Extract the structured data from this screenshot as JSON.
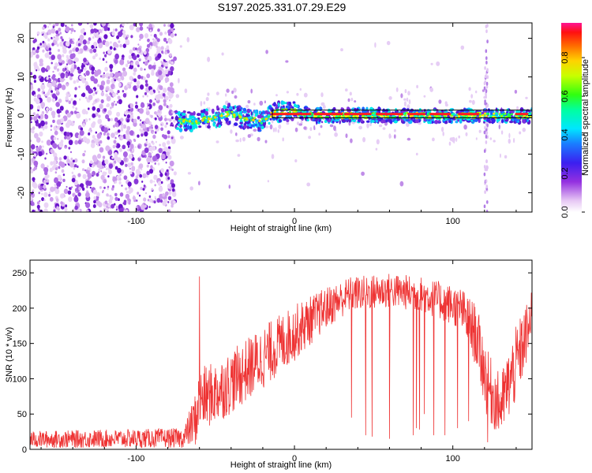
{
  "title": "S197.2025.331.07.29.E29",
  "chart_data": [
    {
      "type": "heatmap",
      "xlabel": "Height of straight line (km)",
      "ylabel": "Frequency (Hz)",
      "xlim": [
        -167,
        150
      ],
      "ylim": [
        -25,
        24
      ],
      "xticks": [
        -100,
        0,
        100
      ],
      "yticks": [
        -20,
        -10,
        0,
        10,
        20
      ],
      "colorbar": {
        "label": "Normalized spectral amplitude",
        "range": [
          0,
          0.98
        ],
        "ticks": [
          "0.0",
          "0.2",
          "0.4",
          "0.6",
          "0.8"
        ],
        "tick_values": [
          0,
          0.2,
          0.4,
          0.6,
          0.8
        ]
      },
      "noise_region": [
        -167,
        -75
      ],
      "signal_track": {
        "x": [
          -75,
          -70,
          -60,
          -50,
          -40,
          -30,
          -20,
          -15,
          -10,
          0,
          10,
          50,
          100,
          150
        ],
        "freq": [
          -1.5,
          -1.5,
          -1.5,
          -0.5,
          0.5,
          -1,
          -1.5,
          0,
          1,
          1,
          0,
          0,
          0,
          0
        ]
      },
      "box": {
        "x": [
          -14,
          150
        ],
        "freq": [
          -0.6,
          1.4
        ]
      },
      "vertical_streak_x": 121
    },
    {
      "type": "line",
      "xlabel": "Height of straight line (km)",
      "ylabel": "SNR (10 * v/v)",
      "xlim": [
        -167,
        150
      ],
      "ylim": [
        0,
        268
      ],
      "xticks": [
        -100,
        0,
        100
      ],
      "yticks": [
        0,
        50,
        100,
        150,
        200,
        250
      ],
      "color": "#ee3333",
      "envelope": {
        "x": [
          -167,
          -70,
          -62,
          -60,
          -50,
          -40,
          -20,
          0,
          20,
          35,
          60,
          80,
          105,
          115,
          122,
          130,
          140,
          150
        ],
        "mean": [
          14,
          16,
          45,
          70,
          80,
          95,
          130,
          165,
          200,
          220,
          225,
          220,
          200,
          160,
          90,
          60,
          120,
          185
        ],
        "spread": [
          12,
          14,
          40,
          45,
          45,
          45,
          45,
          40,
          30,
          25,
          25,
          25,
          30,
          45,
          50,
          45,
          55,
          40
        ]
      },
      "spikes": [
        {
          "x": -60,
          "value": 245
        },
        {
          "x": 36,
          "value": 45
        },
        {
          "x": 45,
          "value": 20
        },
        {
          "x": 49,
          "value": 18
        },
        {
          "x": 60,
          "value": 15
        },
        {
          "x": 75,
          "value": 20
        },
        {
          "x": 77,
          "value": 30
        },
        {
          "x": 79,
          "value": 28
        },
        {
          "x": 82,
          "value": 50
        },
        {
          "x": 88,
          "value": 20
        },
        {
          "x": 95,
          "value": 20
        },
        {
          "x": 103,
          "value": 30
        },
        {
          "x": 110,
          "value": 40
        },
        {
          "x": 122,
          "value": 10
        },
        {
          "x": 126,
          "value": 45
        }
      ]
    }
  ]
}
